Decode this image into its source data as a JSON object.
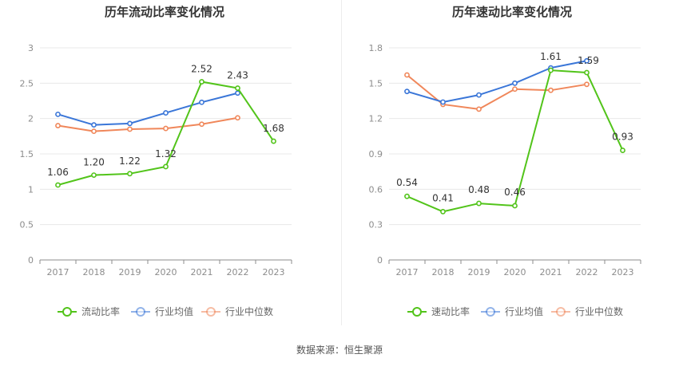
{
  "source": "数据来源：恒生聚源",
  "chart_data": [
    {
      "type": "line",
      "title": "历年流动比率变化情况",
      "x": [
        "2017",
        "2018",
        "2019",
        "2020",
        "2021",
        "2022",
        "2023"
      ],
      "ylim": [
        0,
        3
      ],
      "yticks": [
        "0",
        "0.5",
        "1",
        "1.5",
        "2",
        "2.5",
        "3"
      ],
      "ytick_values": [
        0,
        0.5,
        1,
        1.5,
        2,
        2.5,
        3
      ],
      "grid": true,
      "legend_position": "bottom",
      "series": [
        {
          "name": "流动比率",
          "color": "#52c41a",
          "values": [
            1.06,
            1.2,
            1.22,
            1.32,
            2.52,
            2.43,
            1.68
          ],
          "labels": [
            "1.06",
            "1.20",
            "1.22",
            "1.32",
            "2.52",
            "2.43",
            "1.68"
          ]
        },
        {
          "name": "行业均值",
          "color": "#3a76d8",
          "values": [
            2.06,
            1.91,
            1.93,
            2.08,
            2.23,
            2.36,
            null
          ]
        },
        {
          "name": "行业中位数",
          "color": "#f0875a",
          "values": [
            1.9,
            1.82,
            1.85,
            1.86,
            1.92,
            2.01,
            null
          ]
        }
      ]
    },
    {
      "type": "line",
      "title": "历年速动比率变化情况",
      "x": [
        "2017",
        "2018",
        "2019",
        "2020",
        "2021",
        "2022",
        "2023"
      ],
      "ylim": [
        0,
        1.8
      ],
      "yticks": [
        "0",
        "0.3",
        "0.6",
        "0.9",
        "1.2",
        "1.5",
        "1.8"
      ],
      "ytick_values": [
        0,
        0.3,
        0.6,
        0.9,
        1.2,
        1.5,
        1.8
      ],
      "grid": true,
      "legend_position": "bottom",
      "series": [
        {
          "name": "速动比率",
          "color": "#52c41a",
          "values": [
            0.54,
            0.41,
            0.48,
            0.46,
            1.61,
            1.59,
            0.93
          ],
          "labels": [
            "0.54",
            "0.41",
            "0.48",
            "0.46",
            "1.61",
            "1.59",
            "0.93"
          ]
        },
        {
          "name": "行业均值",
          "color": "#3a76d8",
          "values": [
            1.43,
            1.34,
            1.4,
            1.5,
            1.63,
            1.69,
            null
          ]
        },
        {
          "name": "行业中位数",
          "color": "#f0875a",
          "values": [
            1.57,
            1.32,
            1.28,
            1.45,
            1.44,
            1.49,
            null
          ]
        }
      ]
    }
  ]
}
